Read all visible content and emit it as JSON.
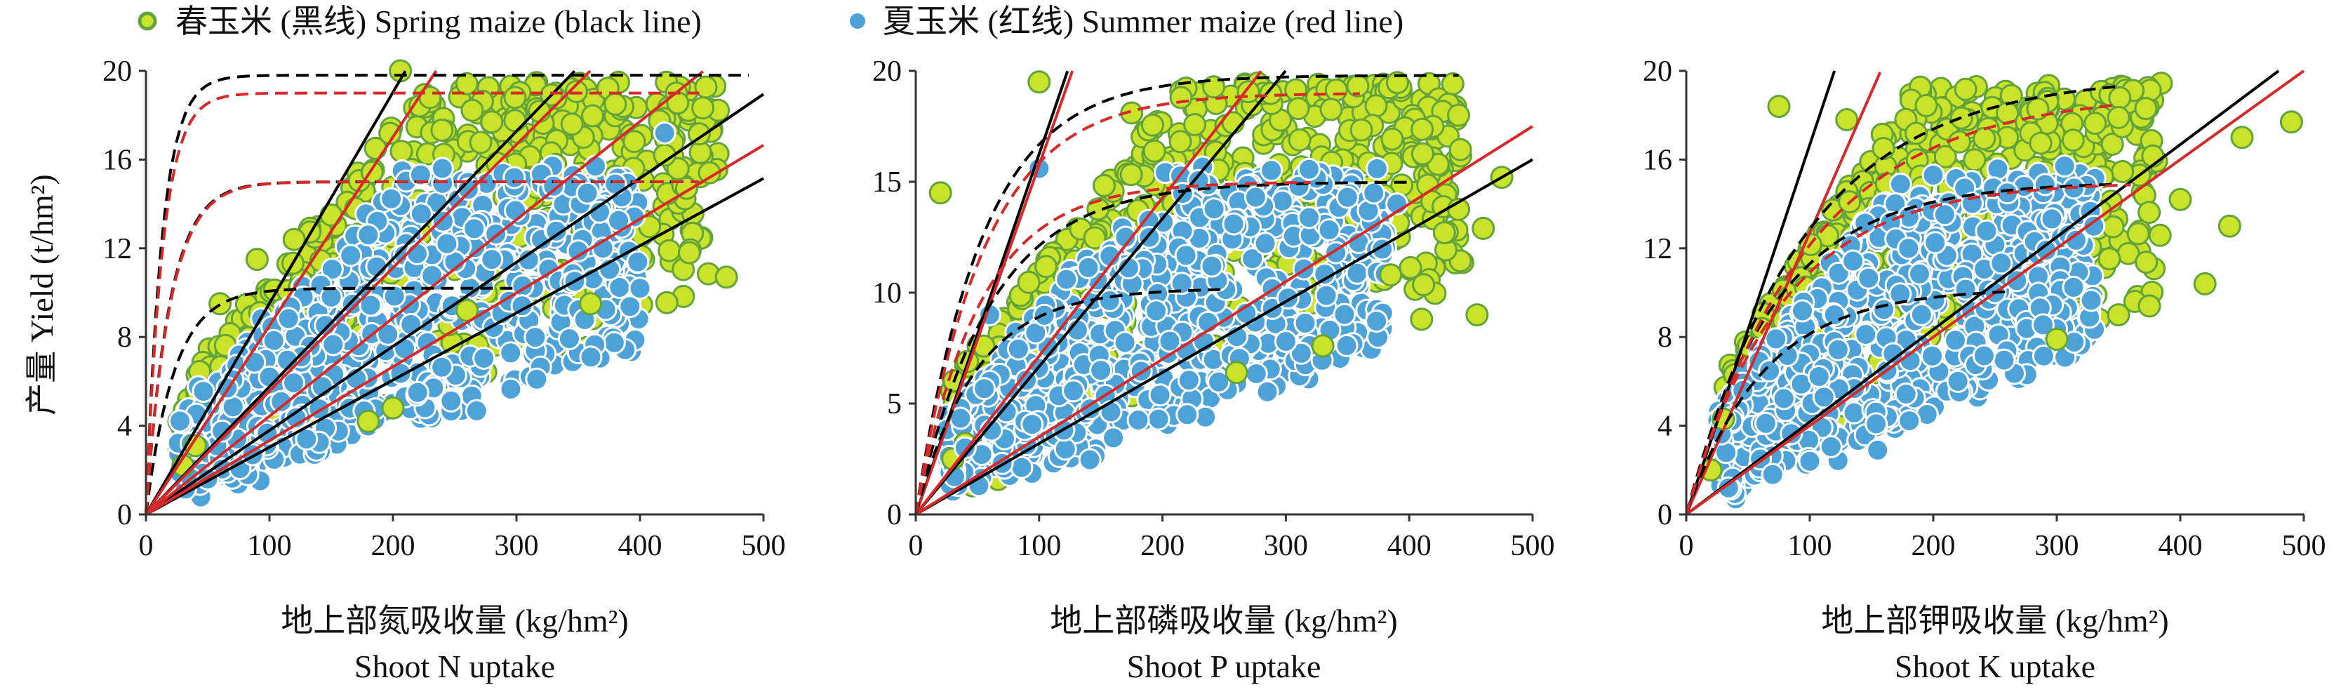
{
  "legend": {
    "spring_label": "春玉米 (黑线) Spring maize (black line)",
    "summer_label": "夏玉米 (红线) Summer maize (red line)"
  },
  "colors": {
    "spring_fill": "#c9e32a",
    "spring_edge": "#62a33a",
    "summer_fill": "#4da3d8",
    "summer_edge": "#ffffff",
    "spring_line": "#000000",
    "summer_line": "#d62a2a"
  },
  "chart_data": [
    {
      "type": "scatter",
      "panel": "N",
      "xlabel_cn": "地上部氮吸收量 (kg/hm²)",
      "xlabel_en": "Shoot N uptake",
      "ylabel": "产量 Yield (t/hm²)",
      "xlim": [
        0,
        500
      ],
      "ylim": [
        0,
        20
      ],
      "xticks": [
        "0",
        "100",
        "200",
        "300",
        "400",
        "500"
      ],
      "yticks": [
        "0",
        "4",
        "8",
        "12",
        "16",
        "20"
      ],
      "series": [
        {
          "group": "spring",
          "points": [
            [
              206,
              20
            ],
            [
              230,
              18.8
            ],
            [
              150,
              13.5
            ],
            [
              120,
              12.4
            ],
            [
              90,
              11.5
            ],
            [
              60,
              9.5
            ],
            [
              470,
              10.7
            ],
            [
              440,
              11.8
            ],
            [
              420,
              16.2
            ],
            [
              380,
              18.5
            ],
            [
              345,
              17.6
            ],
            [
              280,
              17.7
            ],
            [
              200,
              4.8
            ],
            [
              40,
              3.1
            ],
            [
              30,
              2.2
            ],
            [
              180,
              4.2
            ],
            [
              260,
              9.2
            ],
            [
              360,
              9.5
            ]
          ]
        },
        {
          "group": "summer",
          "points": [
            [
              240,
              15.6
            ],
            [
              330,
              14.8
            ],
            [
              400,
              10.2
            ],
            [
              50,
              1.6
            ],
            [
              130,
              3.4
            ],
            [
              220,
              5.5
            ],
            [
              100,
              6.2
            ],
            [
              280,
              11.5
            ],
            [
              380,
              14.9
            ],
            [
              420,
              17.2
            ],
            [
              180,
              12.6
            ],
            [
              150,
              9.8
            ]
          ]
        }
      ],
      "lines": [
        {
          "group": "spring",
          "style": "solid",
          "slope": 0.0952,
          "x0": 0,
          "x1": 210
        },
        {
          "group": "spring",
          "style": "solid",
          "slope": 0.0576,
          "x0": 0,
          "x1": 347
        },
        {
          "group": "spring",
          "style": "solid",
          "slope": 0.0379,
          "x0": 0,
          "x1": 500
        },
        {
          "group": "spring",
          "style": "solid",
          "slope": 0.0303,
          "x0": 0,
          "x1": 500
        },
        {
          "group": "summer",
          "style": "solid",
          "slope": 0.0851,
          "x0": 0,
          "x1": 235
        },
        {
          "group": "summer",
          "style": "solid",
          "slope": 0.0556,
          "x0": 0,
          "x1": 360
        },
        {
          "group": "summer",
          "style": "solid",
          "slope": 0.0443,
          "x0": 0,
          "x1": 451
        },
        {
          "group": "summer",
          "style": "solid",
          "slope": 0.0333,
          "x0": 0,
          "x1": 500
        },
        {
          "group": "spring",
          "style": "dashed",
          "ymax": 19.8,
          "k": 0.0765,
          "x0": 0,
          "x1": 490
        },
        {
          "group": "spring",
          "style": "dashed",
          "ymax": 15.0,
          "k": 0.0523,
          "x0": 0,
          "x1": 430
        },
        {
          "group": "spring",
          "style": "dashed",
          "ymax": 10.2,
          "k": 0.0437,
          "x0": 0,
          "x1": 300
        },
        {
          "group": "summer",
          "style": "dashed",
          "ymax": 19.0,
          "k": 0.0744,
          "x0": 0,
          "x1": 450
        },
        {
          "group": "summer",
          "style": "dashed",
          "ymax": 15.0,
          "k": 0.0511,
          "x0": 0,
          "x1": 450
        }
      ]
    },
    {
      "type": "scatter",
      "panel": "P",
      "xlabel_cn": "地上部磷吸收量 (kg/hm²)",
      "xlabel_en": "Shoot P uptake",
      "ylabel": "",
      "xlim": [
        0,
        500
      ],
      "ylim": [
        0,
        20
      ],
      "xticks": [
        "0",
        "100",
        "200",
        "300",
        "400",
        "500"
      ],
      "yticks": [
        "0",
        "5",
        "10",
        "15",
        "20"
      ],
      "series": [
        {
          "group": "spring",
          "points": [
            [
              100,
              19.5
            ],
            [
              175,
              18.1
            ],
            [
              215,
              18.8
            ],
            [
              310,
              18.3
            ],
            [
              440,
              18.0
            ],
            [
              475,
              15.2
            ],
            [
              460,
              12.9
            ],
            [
              410,
              8.8
            ],
            [
              455,
              9.0
            ],
            [
              385,
              10.8
            ],
            [
              20,
              14.5
            ],
            [
              30,
              2.5
            ],
            [
              40,
              3.2
            ],
            [
              330,
              7.6
            ],
            [
              260,
              6.4
            ]
          ]
        },
        {
          "group": "summer",
          "points": [
            [
              100,
              15.6
            ],
            [
              350,
              14.3
            ],
            [
              390,
              14.0
            ],
            [
              40,
              3.0
            ],
            [
              70,
              2.3
            ],
            [
              120,
              3.8
            ],
            [
              220,
              4.5
            ],
            [
              300,
              7.8
            ],
            [
              170,
              12.5
            ],
            [
              240,
              11.2
            ],
            [
              60,
              9.0
            ],
            [
              150,
              6.5
            ]
          ]
        }
      ],
      "lines": [
        {
          "group": "spring",
          "style": "solid",
          "slope": 0.1625,
          "x0": 0,
          "x1": 123
        },
        {
          "group": "spring",
          "style": "solid",
          "slope": 0.0667,
          "x0": 0,
          "x1": 300
        },
        {
          "group": "spring",
          "style": "solid",
          "slope": 0.032,
          "x0": 0,
          "x1": 500
        },
        {
          "group": "summer",
          "style": "solid",
          "slope": 0.1575,
          "x0": 0,
          "x1": 127
        },
        {
          "group": "summer",
          "style": "solid",
          "slope": 0.0714,
          "x0": 0,
          "x1": 280
        },
        {
          "group": "summer",
          "style": "solid",
          "slope": 0.035,
          "x0": 0,
          "x1": 500
        },
        {
          "group": "spring",
          "style": "dashed",
          "ymax": 19.8,
          "k": 0.0185,
          "x0": 0,
          "x1": 440
        },
        {
          "group": "spring",
          "style": "dashed",
          "ymax": 15.0,
          "k": 0.0165,
          "x0": 0,
          "x1": 400
        },
        {
          "group": "spring",
          "style": "dashed",
          "ymax": 10.2,
          "k": 0.0207,
          "x0": 0,
          "x1": 250
        },
        {
          "group": "summer",
          "style": "dashed",
          "ymax": 19.0,
          "k": 0.018,
          "x0": 0,
          "x1": 360
        },
        {
          "group": "summer",
          "style": "dashed",
          "ymax": 15.0,
          "k": 0.0193,
          "x0": 0,
          "x1": 320
        }
      ]
    },
    {
      "type": "scatter",
      "panel": "K",
      "xlabel_cn": "地上部钾吸收量 (kg/hm²)",
      "xlabel_en": "Shoot K uptake",
      "ylabel": "",
      "xlim": [
        0,
        500
      ],
      "ylim": [
        0,
        20
      ],
      "xticks": [
        "0",
        "100",
        "200",
        "300",
        "400",
        "500"
      ],
      "yticks": [
        "0",
        "4",
        "8",
        "12",
        "16",
        "20"
      ],
      "series": [
        {
          "group": "spring",
          "points": [
            [
              75,
              18.4
            ],
            [
              130,
              17.8
            ],
            [
              260,
              18.1
            ],
            [
              350,
              17.9
            ],
            [
              450,
              17.0
            ],
            [
              490,
              17.7
            ],
            [
              420,
              10.4
            ],
            [
              400,
              14.2
            ],
            [
              375,
              9.4
            ],
            [
              300,
              7.9
            ],
            [
              20,
              2.0
            ],
            [
              30,
              4.3
            ],
            [
              440,
              13.0
            ],
            [
              350,
              9.0
            ]
          ]
        },
        {
          "group": "summer",
          "points": [
            [
              200,
              15.3
            ],
            [
              260,
              14.5
            ],
            [
              330,
              13.0
            ],
            [
              60,
              2.5
            ],
            [
              100,
              2.4
            ],
            [
              155,
              2.9
            ],
            [
              70,
              1.8
            ],
            [
              220,
              6.0
            ],
            [
              120,
              9.0
            ],
            [
              180,
              12.0
            ],
            [
              250,
              10.0
            ]
          ]
        }
      ],
      "lines": [
        {
          "group": "spring",
          "style": "solid",
          "slope": 0.1667,
          "x0": 0,
          "x1": 120
        },
        {
          "group": "spring",
          "style": "solid",
          "slope": 0.0417,
          "x0": 0,
          "x1": 480
        },
        {
          "group": "summer",
          "style": "solid",
          "slope": 0.127,
          "x0": 0,
          "x1": 157
        },
        {
          "group": "summer",
          "style": "solid",
          "slope": 0.04,
          "x0": 0,
          "x1": 500
        },
        {
          "group": "spring",
          "style": "dashed",
          "ymax": 19.8,
          "k": 0.0105,
          "x0": 0,
          "x1": 350
        },
        {
          "group": "spring",
          "style": "dashed",
          "ymax": 15.0,
          "k": 0.014,
          "x0": 0,
          "x1": 350
        },
        {
          "group": "spring",
          "style": "dashed",
          "ymax": 10.2,
          "k": 0.016,
          "x0": 0,
          "x1": 260
        },
        {
          "group": "summer",
          "style": "dashed",
          "ymax": 19.0,
          "k": 0.0102,
          "x0": 0,
          "x1": 350
        },
        {
          "group": "summer",
          "style": "dashed",
          "ymax": 15.0,
          "k": 0.013,
          "x0": 0,
          "x1": 360
        }
      ]
    }
  ]
}
